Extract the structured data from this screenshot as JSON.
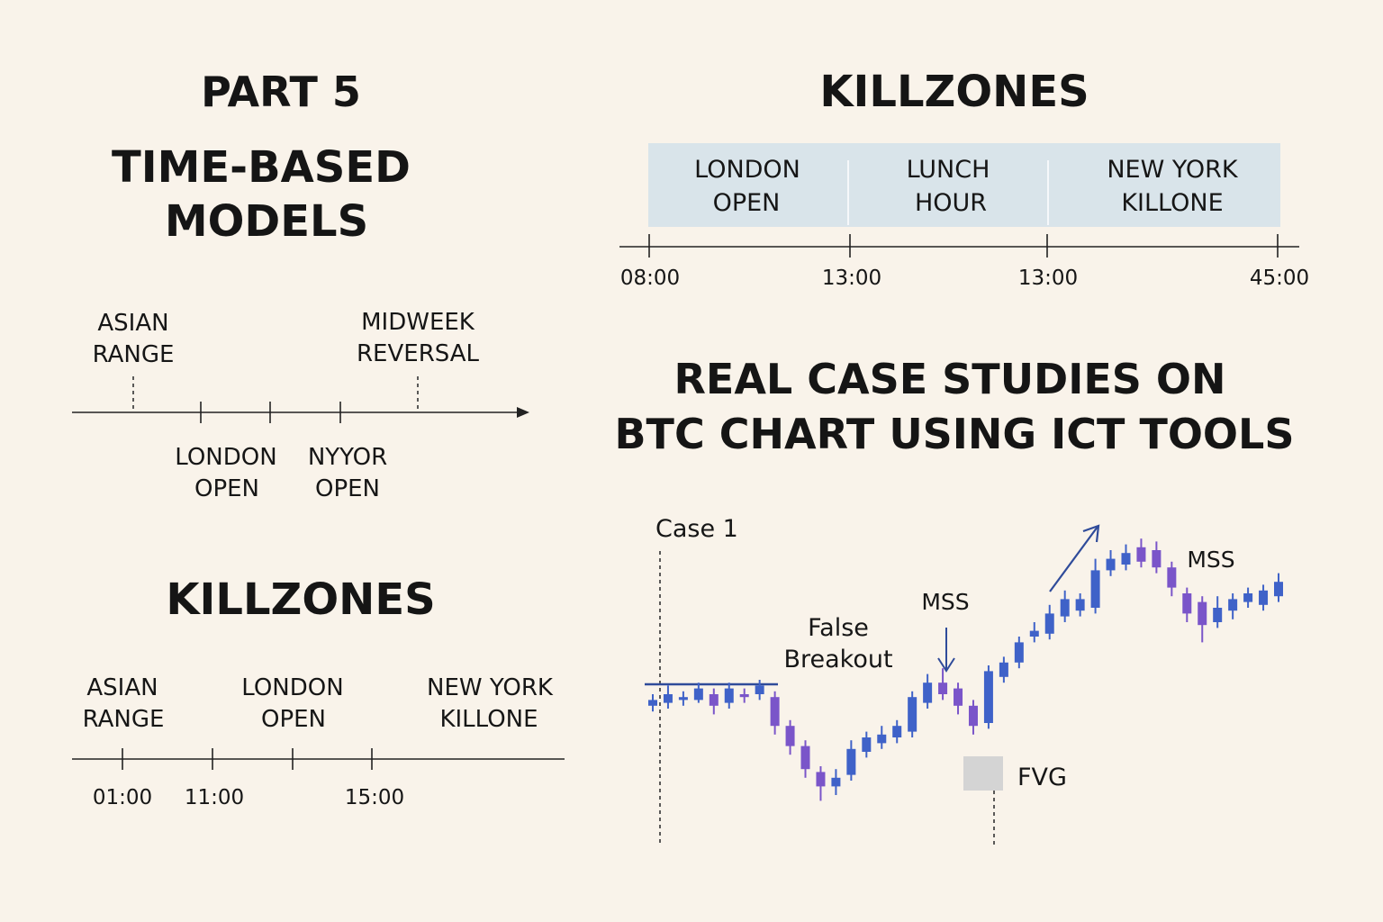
{
  "left": {
    "part_label": "PART 5",
    "title_line1": "TIME-BASED",
    "title_line2": "MODELS",
    "timeline": {
      "top_labels": [
        {
          "line1": "ASIAN",
          "line2": "RANGE"
        },
        {
          "line1": "MIDWEEK",
          "line2": "REVERSAL"
        }
      ],
      "bottom_labels": [
        {
          "line1": "LONDON",
          "line2": "OPEN"
        },
        {
          "line1": "NYYOR",
          "line2": "OPEN"
        }
      ]
    },
    "killzones": {
      "title": "KILLZONES",
      "sessions": [
        {
          "line1": "ASIAN",
          "line2": "RANGE"
        },
        {
          "line1": "LONDON",
          "line2": "OPEN"
        },
        {
          "line1": "NEW YORK",
          "line2": "KILLONE"
        }
      ],
      "times": [
        "01:00",
        "11:00",
        "15:00"
      ]
    }
  },
  "right": {
    "killzones": {
      "title": "KILLZONES",
      "sessions": [
        {
          "line1": "LONDON",
          "line2": "OPEN"
        },
        {
          "line1": "LUNCH",
          "line2": "HOUR"
        },
        {
          "line1": "NEW YORK",
          "line2": "KILLONE"
        }
      ],
      "times": [
        "08:00",
        "13:00",
        "13:00",
        "45:00"
      ],
      "band_color": "#d9e4ea"
    },
    "case_studies": {
      "title_line1": "REAL CASE STUDIES ON",
      "title_line2": "BTC CHART USING ICT TOOLS",
      "case_label": "Case 1",
      "annotations": {
        "false_breakout_line1": "False",
        "false_breakout_line2": "Breakout",
        "mss_1": "MSS",
        "mss_2": "MSS",
        "fvg": "FVG"
      },
      "colors": {
        "candle_blue": "#3f62c8",
        "candle_purple": "#7a55c9",
        "arrow": "#2f4b9a",
        "fvg_box": "#d4d4d4"
      }
    }
  },
  "chart_data": {
    "type": "candlestick",
    "title": "",
    "xlabel": "",
    "ylabel": "",
    "ylim": [
      0,
      100
    ],
    "candles": [
      {
        "o": 41,
        "c": 43,
        "h": 45,
        "l": 39
      },
      {
        "o": 42,
        "c": 45,
        "h": 48,
        "l": 40
      },
      {
        "o": 43,
        "c": 44,
        "h": 46,
        "l": 41
      },
      {
        "o": 43,
        "c": 47,
        "h": 49,
        "l": 42
      },
      {
        "o": 45,
        "c": 41,
        "h": 47,
        "l": 38
      },
      {
        "o": 42,
        "c": 47,
        "h": 49,
        "l": 40
      },
      {
        "o": 45,
        "c": 44,
        "h": 47,
        "l": 42
      },
      {
        "o": 45,
        "c": 48,
        "h": 50,
        "l": 43
      },
      {
        "o": 44,
        "c": 34,
        "h": 46,
        "l": 31
      },
      {
        "o": 34,
        "c": 27,
        "h": 36,
        "l": 24
      },
      {
        "o": 27,
        "c": 19,
        "h": 29,
        "l": 16
      },
      {
        "o": 18,
        "c": 13,
        "h": 20,
        "l": 8
      },
      {
        "o": 13,
        "c": 16,
        "h": 19,
        "l": 10
      },
      {
        "o": 17,
        "c": 26,
        "h": 29,
        "l": 15
      },
      {
        "o": 25,
        "c": 30,
        "h": 32,
        "l": 23
      },
      {
        "o": 28,
        "c": 31,
        "h": 34,
        "l": 26
      },
      {
        "o": 30,
        "c": 34,
        "h": 36,
        "l": 28
      },
      {
        "o": 32,
        "c": 44,
        "h": 46,
        "l": 30
      },
      {
        "o": 42,
        "c": 49,
        "h": 52,
        "l": 40
      },
      {
        "o": 49,
        "c": 45,
        "h": 54,
        "l": 43
      },
      {
        "o": 47,
        "c": 41,
        "h": 49,
        "l": 38
      },
      {
        "o": 41,
        "c": 34,
        "h": 43,
        "l": 31
      },
      {
        "o": 35,
        "c": 53,
        "h": 55,
        "l": 33
      },
      {
        "o": 51,
        "c": 56,
        "h": 58,
        "l": 49
      },
      {
        "o": 56,
        "c": 63,
        "h": 65,
        "l": 54
      },
      {
        "o": 65,
        "c": 67,
        "h": 70,
        "l": 63
      },
      {
        "o": 66,
        "c": 73,
        "h": 76,
        "l": 64
      },
      {
        "o": 72,
        "c": 78,
        "h": 81,
        "l": 70
      },
      {
        "o": 74,
        "c": 78,
        "h": 80,
        "l": 72
      },
      {
        "o": 75,
        "c": 88,
        "h": 92,
        "l": 73
      },
      {
        "o": 88,
        "c": 92,
        "h": 95,
        "l": 86
      },
      {
        "o": 90,
        "c": 94,
        "h": 97,
        "l": 88
      },
      {
        "o": 96,
        "c": 91,
        "h": 99,
        "l": 89
      },
      {
        "o": 95,
        "c": 89,
        "h": 98,
        "l": 87
      },
      {
        "o": 89,
        "c": 82,
        "h": 91,
        "l": 79
      },
      {
        "o": 80,
        "c": 73,
        "h": 82,
        "l": 70
      },
      {
        "o": 77,
        "c": 69,
        "h": 79,
        "l": 63
      },
      {
        "o": 70,
        "c": 75,
        "h": 79,
        "l": 68
      },
      {
        "o": 74,
        "c": 78,
        "h": 80,
        "l": 71
      },
      {
        "o": 77,
        "c": 80,
        "h": 82,
        "l": 75
      },
      {
        "o": 76,
        "c": 81,
        "h": 83,
        "l": 74
      },
      {
        "o": 79,
        "c": 84,
        "h": 87,
        "l": 77
      }
    ]
  }
}
